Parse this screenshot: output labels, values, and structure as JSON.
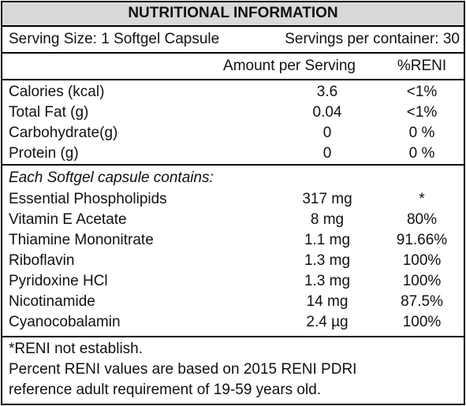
{
  "title": "NUTRITIONAL INFORMATION",
  "serving": {
    "size": "Serving Size: 1 Softgel Capsule",
    "per_container": "Servings per container: 30"
  },
  "header": {
    "amount": "Amount per Serving",
    "reni": "%RENI"
  },
  "nutrients": [
    [
      "Calories (kcal)",
      "3.6",
      "<1%"
    ],
    [
      "Total Fat (g)",
      "0.04",
      "<1%"
    ],
    [
      "Carbohydrate(g)",
      "0",
      "0 %"
    ],
    [
      "Protein (g)",
      "0",
      "0 %"
    ]
  ],
  "contents": {
    "heading": "Each Softgel capsule contains:",
    "rows": [
      [
        "Essential Phospholipids",
        "317 mg",
        "*"
      ],
      [
        "Vitamin E Acetate",
        "8 mg",
        "80%"
      ],
      [
        "Thiamine Mononitrate",
        "1.1 mg",
        "91.66%"
      ],
      [
        "Riboflavin",
        "1.3 mg",
        "100%"
      ],
      [
        "Pyridoxine HCl",
        "1.3 mg",
        "100%"
      ],
      [
        "Nicotinamide",
        "14 mg",
        "87.5%"
      ],
      [
        "Cyanocobalamin",
        "2.4 µg",
        "100%"
      ]
    ]
  },
  "footer": [
    "*RENI not establish.",
    "Percent RENI values are based on 2015 RENI PDRI",
    "reference adult requirement of 19-59 years old."
  ]
}
